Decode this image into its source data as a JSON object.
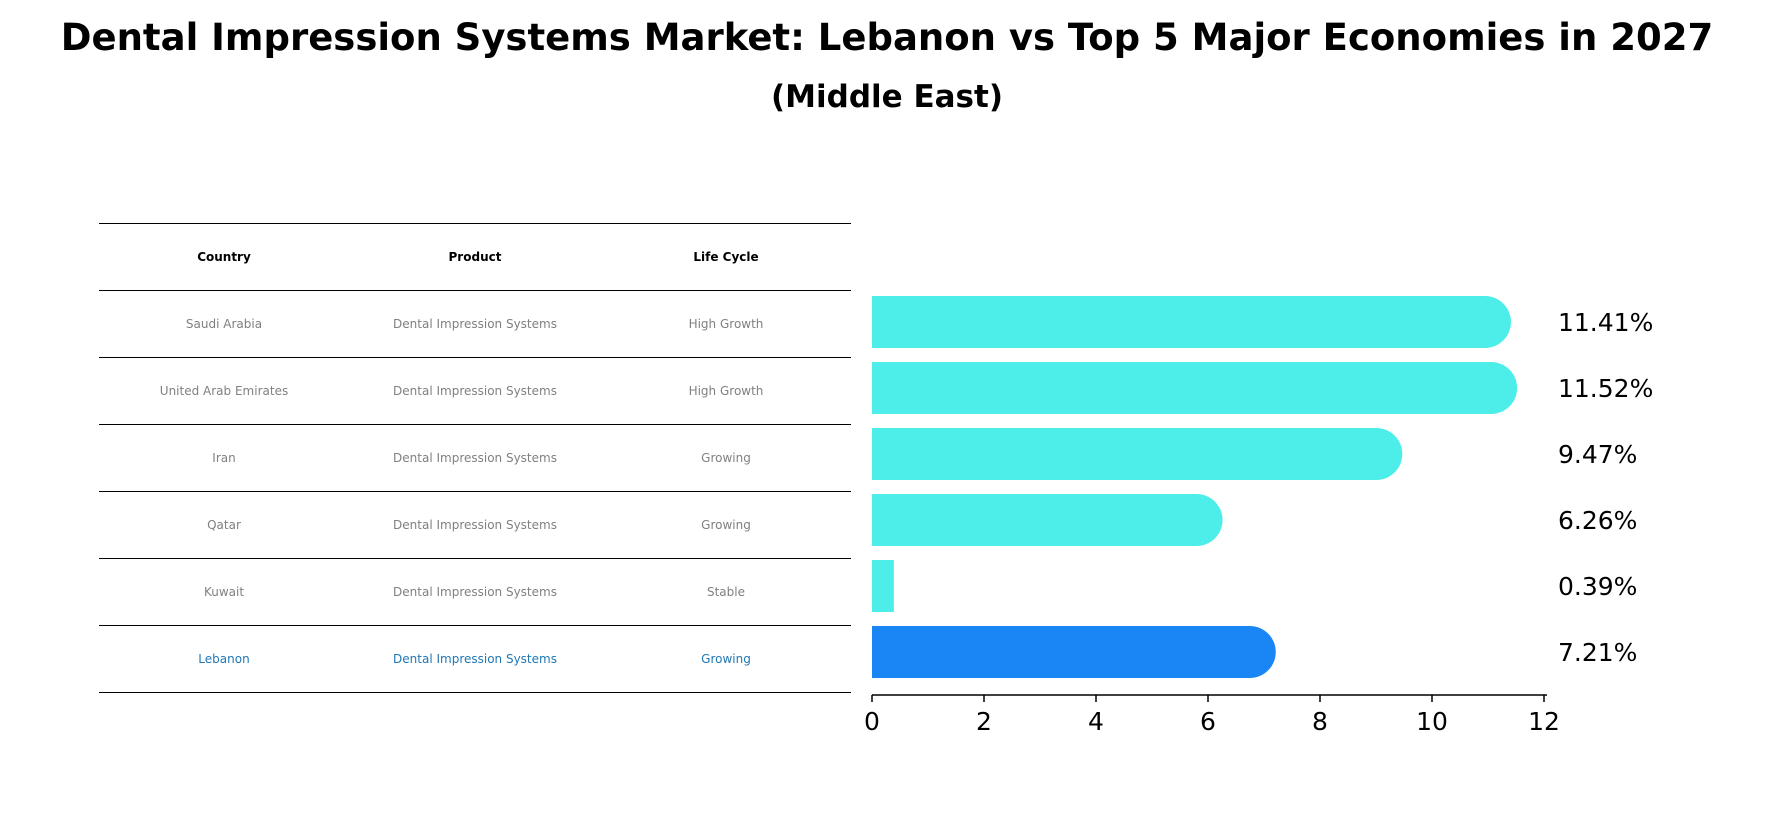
{
  "title": "Dental Impression Systems Market: Lebanon vs Top 5 Major Economies in 2027",
  "subtitle": "(Middle East)",
  "table": {
    "headers": [
      "Country",
      "Product",
      "Life Cycle"
    ],
    "rows": [
      [
        "Saudi Arabia",
        "Dental Impression Systems",
        "High Growth"
      ],
      [
        "United Arab Emirates",
        "Dental Impression Systems",
        "High Growth"
      ],
      [
        "Iran",
        "Dental Impression Systems",
        "Growing"
      ],
      [
        "Qatar",
        "Dental Impression Systems",
        "Growing"
      ],
      [
        "Kuwait",
        "Dental Impression Systems",
        "Stable"
      ],
      [
        "Lebanon",
        "Dental Impression Systems",
        "Growing"
      ]
    ],
    "highlight_color": "#1f77b4",
    "text_color": "#808080"
  },
  "chart_data": {
    "type": "bar",
    "orientation": "horizontal",
    "categories": [
      "Saudi Arabia",
      "United Arab Emirates",
      "Iran",
      "Qatar",
      "Kuwait",
      "Lebanon"
    ],
    "values": [
      11.41,
      11.52,
      9.47,
      6.26,
      0.39,
      7.21
    ],
    "value_labels": [
      "11.41%",
      "11.52%",
      "9.47%",
      "6.26%",
      "0.39%",
      "7.21%"
    ],
    "highlight_index": 5,
    "colors": {
      "default": "#4deeea",
      "highlight": "#1a85f5"
    },
    "xlim": [
      0,
      12
    ],
    "xticks": [
      0,
      2,
      4,
      6,
      8,
      10,
      12
    ],
    "xlabel": "",
    "ylabel": "",
    "grid": false
  }
}
